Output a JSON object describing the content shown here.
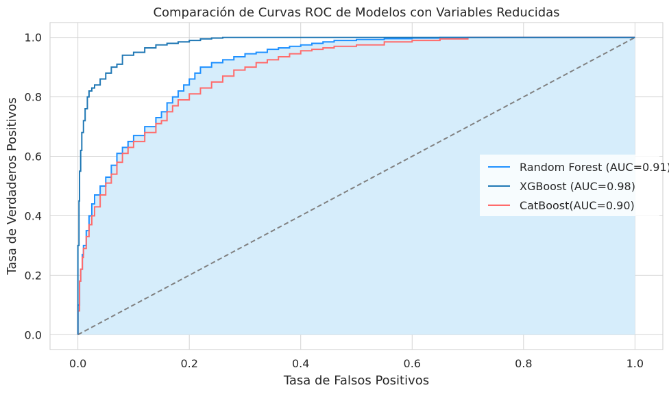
{
  "chart_data": {
    "type": "line",
    "title": "Comparación de Curvas ROC de Modelos con Variables Reducidas",
    "xlabel": "Tasa de Falsos Positivos",
    "ylabel": "Tasa de Verdaderos Positivos",
    "xlim": [
      -0.05,
      1.05
    ],
    "ylim": [
      -0.05,
      1.05
    ],
    "xticks": [
      "0.0",
      "0.2",
      "0.4",
      "0.6",
      "0.8",
      "1.0"
    ],
    "yticks": [
      "0.0",
      "0.2",
      "0.4",
      "0.6",
      "0.8",
      "1.0"
    ],
    "grid": true,
    "legend_position": "center-right",
    "fill_under": "Random Forest (AUC=0.91)",
    "fill_color": "#d6edfb",
    "series": [
      {
        "name": "Random Forest (AUC=0.91)",
        "color": "#1e90ff",
        "x": [
          0.0,
          0.0,
          0.003,
          0.005,
          0.008,
          0.01,
          0.015,
          0.02,
          0.025,
          0.03,
          0.04,
          0.05,
          0.06,
          0.07,
          0.08,
          0.09,
          0.1,
          0.12,
          0.14,
          0.15,
          0.16,
          0.17,
          0.18,
          0.19,
          0.2,
          0.21,
          0.22,
          0.24,
          0.26,
          0.28,
          0.3,
          0.32,
          0.34,
          0.36,
          0.38,
          0.4,
          0.42,
          0.44,
          0.46,
          0.5,
          0.55,
          0.6,
          0.65,
          0.7,
          0.8,
          0.9,
          1.0
        ],
        "y": [
          0.0,
          0.1,
          0.18,
          0.22,
          0.27,
          0.3,
          0.35,
          0.4,
          0.44,
          0.47,
          0.5,
          0.53,
          0.57,
          0.61,
          0.63,
          0.65,
          0.67,
          0.7,
          0.73,
          0.75,
          0.78,
          0.8,
          0.82,
          0.84,
          0.86,
          0.88,
          0.9,
          0.915,
          0.925,
          0.935,
          0.945,
          0.95,
          0.96,
          0.965,
          0.97,
          0.975,
          0.98,
          0.985,
          0.99,
          0.993,
          0.996,
          0.998,
          1.0,
          1.0,
          1.0,
          1.0,
          1.0
        ]
      },
      {
        "name": "XGBoost (AUC=0.98)",
        "color": "#1f77b4",
        "x": [
          0.0,
          0.0,
          0.002,
          0.003,
          0.005,
          0.007,
          0.01,
          0.013,
          0.017,
          0.02,
          0.025,
          0.03,
          0.04,
          0.05,
          0.06,
          0.07,
          0.08,
          0.1,
          0.12,
          0.14,
          0.16,
          0.18,
          0.2,
          0.22,
          0.24,
          0.26,
          0.3,
          0.4,
          0.5,
          0.6,
          0.7,
          0.8,
          0.9,
          1.0
        ],
        "y": [
          0.0,
          0.3,
          0.45,
          0.55,
          0.62,
          0.68,
          0.72,
          0.76,
          0.8,
          0.82,
          0.83,
          0.84,
          0.86,
          0.88,
          0.9,
          0.91,
          0.94,
          0.95,
          0.965,
          0.975,
          0.98,
          0.985,
          0.99,
          0.995,
          0.998,
          1.0,
          1.0,
          1.0,
          1.0,
          1.0,
          1.0,
          1.0,
          1.0,
          1.0
        ]
      },
      {
        "name": "CatBoost(AUC=0.90)",
        "color": "#ff6b6b",
        "x": [
          0.0,
          0.0,
          0.003,
          0.005,
          0.008,
          0.01,
          0.015,
          0.02,
          0.025,
          0.03,
          0.04,
          0.05,
          0.06,
          0.07,
          0.08,
          0.09,
          0.1,
          0.12,
          0.14,
          0.15,
          0.16,
          0.17,
          0.18,
          0.2,
          0.22,
          0.24,
          0.26,
          0.28,
          0.3,
          0.32,
          0.34,
          0.36,
          0.38,
          0.4,
          0.42,
          0.44,
          0.46,
          0.5,
          0.55,
          0.6,
          0.65,
          0.7,
          0.8,
          0.9,
          1.0
        ],
        "y": [
          0.0,
          0.08,
          0.18,
          0.22,
          0.26,
          0.29,
          0.33,
          0.37,
          0.4,
          0.43,
          0.47,
          0.51,
          0.54,
          0.58,
          0.61,
          0.63,
          0.65,
          0.68,
          0.71,
          0.72,
          0.75,
          0.77,
          0.79,
          0.81,
          0.83,
          0.85,
          0.87,
          0.89,
          0.9,
          0.915,
          0.925,
          0.935,
          0.945,
          0.955,
          0.96,
          0.965,
          0.97,
          0.975,
          0.985,
          0.99,
          0.995,
          1.0,
          1.0,
          1.0,
          1.0
        ]
      },
      {
        "name": "",
        "color": "#808080",
        "dashed": true,
        "x": [
          0.0,
          1.0
        ],
        "y": [
          0.0,
          1.0
        ]
      }
    ]
  }
}
